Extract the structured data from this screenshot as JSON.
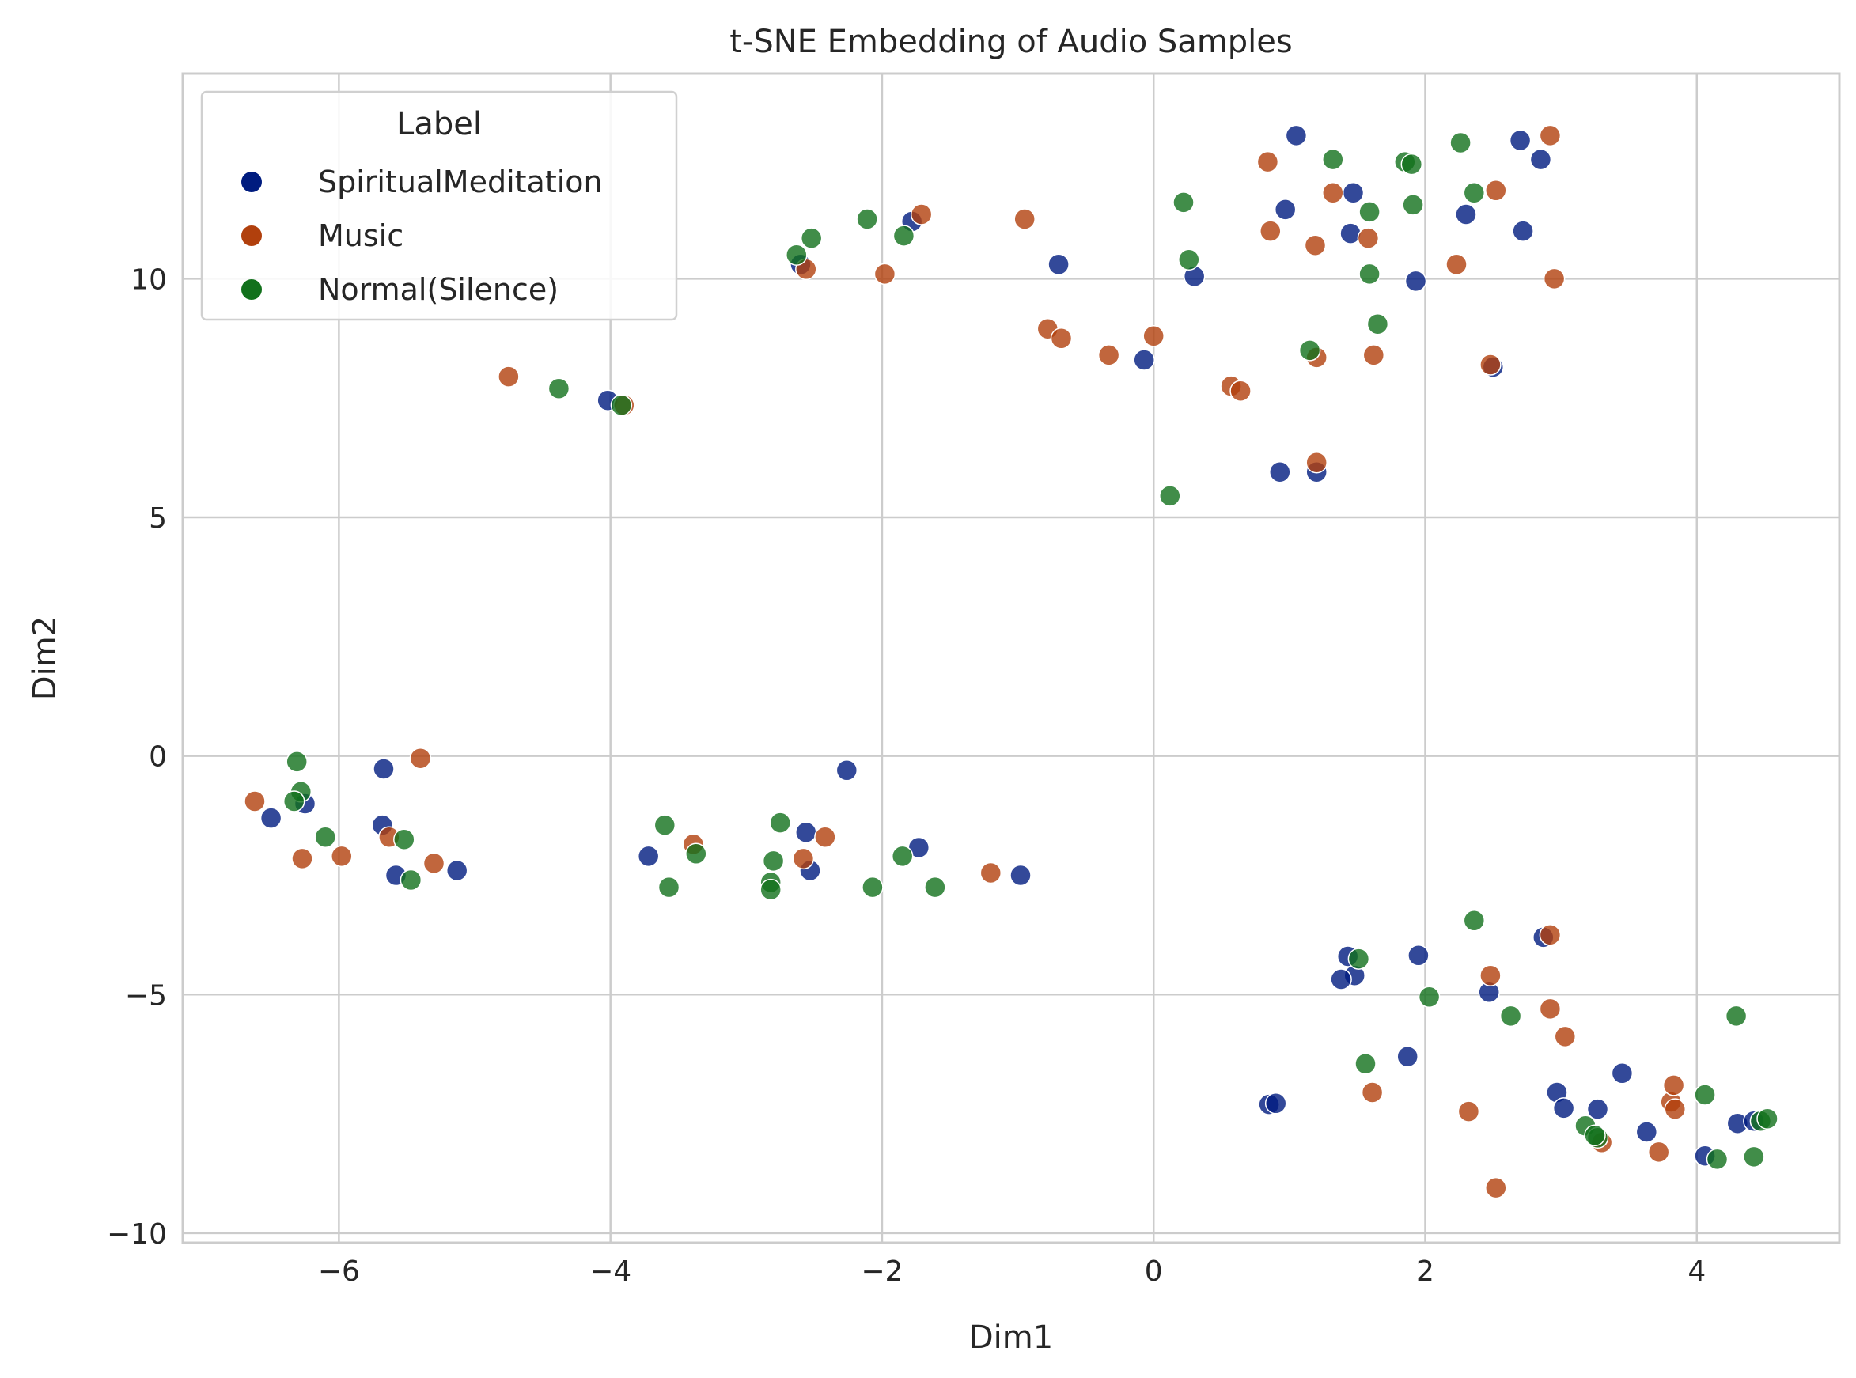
{
  "chart_data": {
    "type": "scatter",
    "title": "t-SNE Embedding of Audio Samples",
    "xlabel": "Dim1",
    "ylabel": "Dim2",
    "xlim": [
      -7.15,
      5.05
    ],
    "ylim": [
      -10.2,
      14.3
    ],
    "xticks": [
      -6,
      -4,
      -2,
      0,
      2,
      4
    ],
    "yticks": [
      -10,
      -5,
      0,
      5,
      10
    ],
    "xtick_labels": [
      "−6",
      "−4",
      "−2",
      "0",
      "2",
      "4"
    ],
    "ytick_labels": [
      "−10",
      "−5",
      "0",
      "5",
      "10"
    ],
    "grid": true,
    "legend": {
      "title": "Label",
      "placement": "upper-left"
    },
    "series": [
      {
        "name": "SpiritualMeditation",
        "color": "#001c7f",
        "points": [
          [
            1.05,
            13.0
          ],
          [
            2.7,
            12.9
          ],
          [
            2.85,
            12.5
          ],
          [
            1.47,
            11.8
          ],
          [
            0.97,
            11.45
          ],
          [
            2.3,
            11.35
          ],
          [
            2.72,
            11.0
          ],
          [
            1.45,
            10.95
          ],
          [
            -1.78,
            11.2
          ],
          [
            -2.6,
            10.3
          ],
          [
            -0.7,
            10.3
          ],
          [
            0.3,
            10.05
          ],
          [
            1.93,
            9.95
          ],
          [
            -0.07,
            8.3
          ],
          [
            2.5,
            8.15
          ],
          [
            -4.02,
            7.45
          ],
          [
            0.93,
            5.95
          ],
          [
            1.2,
            5.95
          ],
          [
            -5.67,
            -0.27
          ],
          [
            -6.5,
            -1.3
          ],
          [
            -6.25,
            -1.0
          ],
          [
            -5.68,
            -1.45
          ],
          [
            -5.58,
            -2.5
          ],
          [
            -5.13,
            -2.4
          ],
          [
            -2.26,
            -0.3
          ],
          [
            -2.56,
            -1.6
          ],
          [
            -2.53,
            -2.4
          ],
          [
            -1.73,
            -1.92
          ],
          [
            -3.72,
            -2.1
          ],
          [
            -0.98,
            -2.5
          ],
          [
            1.43,
            -4.2
          ],
          [
            1.48,
            -4.6
          ],
          [
            1.38,
            -4.68
          ],
          [
            1.95,
            -4.18
          ],
          [
            2.47,
            -4.95
          ],
          [
            2.87,
            -3.8
          ],
          [
            1.87,
            -6.3
          ],
          [
            0.85,
            -7.3
          ],
          [
            0.9,
            -7.28
          ],
          [
            2.97,
            -7.05
          ],
          [
            3.02,
            -7.38
          ],
          [
            3.27,
            -7.4
          ],
          [
            3.45,
            -6.65
          ],
          [
            3.63,
            -7.88
          ],
          [
            4.06,
            -8.38
          ],
          [
            4.3,
            -7.7
          ],
          [
            4.42,
            -7.65
          ]
        ]
      },
      {
        "name": "Music",
        "color": "#b1400d",
        "points": [
          [
            2.92,
            13.0
          ],
          [
            0.84,
            12.45
          ],
          [
            1.32,
            11.8
          ],
          [
            2.52,
            11.85
          ],
          [
            -1.71,
            11.35
          ],
          [
            -0.95,
            11.25
          ],
          [
            0.86,
            11.0
          ],
          [
            1.58,
            10.85
          ],
          [
            1.19,
            10.7
          ],
          [
            -2.56,
            10.2
          ],
          [
            -1.98,
            10.1
          ],
          [
            2.23,
            10.3
          ],
          [
            2.95,
            10.0
          ],
          [
            -0.78,
            8.95
          ],
          [
            -0.68,
            8.75
          ],
          [
            0.0,
            8.8
          ],
          [
            -0.33,
            8.4
          ],
          [
            1.2,
            8.35
          ],
          [
            1.62,
            8.4
          ],
          [
            2.48,
            8.2
          ],
          [
            0.57,
            7.75
          ],
          [
            0.64,
            7.65
          ],
          [
            -4.75,
            7.95
          ],
          [
            -3.9,
            7.35
          ],
          [
            1.2,
            6.15
          ],
          [
            -5.4,
            -0.05
          ],
          [
            -6.62,
            -0.95
          ],
          [
            -6.27,
            -2.15
          ],
          [
            -5.98,
            -2.1
          ],
          [
            -5.63,
            -1.7
          ],
          [
            -5.3,
            -2.25
          ],
          [
            -3.39,
            -1.85
          ],
          [
            -2.42,
            -1.7
          ],
          [
            -2.58,
            -2.15
          ],
          [
            -1.2,
            -2.45
          ],
          [
            2.48,
            -4.6
          ],
          [
            2.92,
            -3.75
          ],
          [
            2.92,
            -5.3
          ],
          [
            3.03,
            -5.88
          ],
          [
            1.61,
            -7.05
          ],
          [
            2.32,
            -7.45
          ],
          [
            2.52,
            -9.05
          ],
          [
            3.3,
            -8.1
          ],
          [
            3.72,
            -8.3
          ],
          [
            3.81,
            -7.25
          ],
          [
            3.83,
            -6.9
          ],
          [
            3.84,
            -7.4
          ]
        ]
      },
      {
        "name": "Normal(Silence)",
        "color": "#12711c",
        "points": [
          [
            1.32,
            12.5
          ],
          [
            1.85,
            12.45
          ],
          [
            1.9,
            12.4
          ],
          [
            2.26,
            12.85
          ],
          [
            2.36,
            11.8
          ],
          [
            1.59,
            11.4
          ],
          [
            1.91,
            11.55
          ],
          [
            0.22,
            11.6
          ],
          [
            -2.11,
            11.25
          ],
          [
            -1.84,
            10.9
          ],
          [
            -2.52,
            10.85
          ],
          [
            -2.63,
            10.5
          ],
          [
            0.26,
            10.4
          ],
          [
            1.59,
            10.1
          ],
          [
            1.65,
            9.05
          ],
          [
            1.15,
            8.5
          ],
          [
            -4.38,
            7.7
          ],
          [
            -3.92,
            7.35
          ],
          [
            0.12,
            5.45
          ],
          [
            -6.31,
            -0.12
          ],
          [
            -6.28,
            -0.75
          ],
          [
            -6.33,
            -0.95
          ],
          [
            -6.1,
            -1.7
          ],
          [
            -5.52,
            -1.75
          ],
          [
            -5.47,
            -2.6
          ],
          [
            -3.6,
            -1.45
          ],
          [
            -3.57,
            -2.75
          ],
          [
            -3.37,
            -2.05
          ],
          [
            -2.75,
            -1.4
          ],
          [
            -2.8,
            -2.2
          ],
          [
            -2.82,
            -2.65
          ],
          [
            -2.82,
            -2.8
          ],
          [
            -2.07,
            -2.75
          ],
          [
            -1.85,
            -2.1
          ],
          [
            -1.61,
            -2.75
          ],
          [
            2.36,
            -3.45
          ],
          [
            1.51,
            -4.25
          ],
          [
            2.03,
            -5.05
          ],
          [
            2.63,
            -5.45
          ],
          [
            1.56,
            -6.45
          ],
          [
            3.18,
            -7.75
          ],
          [
            3.27,
            -8.0
          ],
          [
            3.25,
            -7.95
          ],
          [
            4.06,
            -7.1
          ],
          [
            4.29,
            -5.45
          ],
          [
            4.15,
            -8.45
          ],
          [
            4.42,
            -8.4
          ],
          [
            4.47,
            -7.65
          ],
          [
            4.52,
            -7.6
          ]
        ]
      }
    ]
  }
}
